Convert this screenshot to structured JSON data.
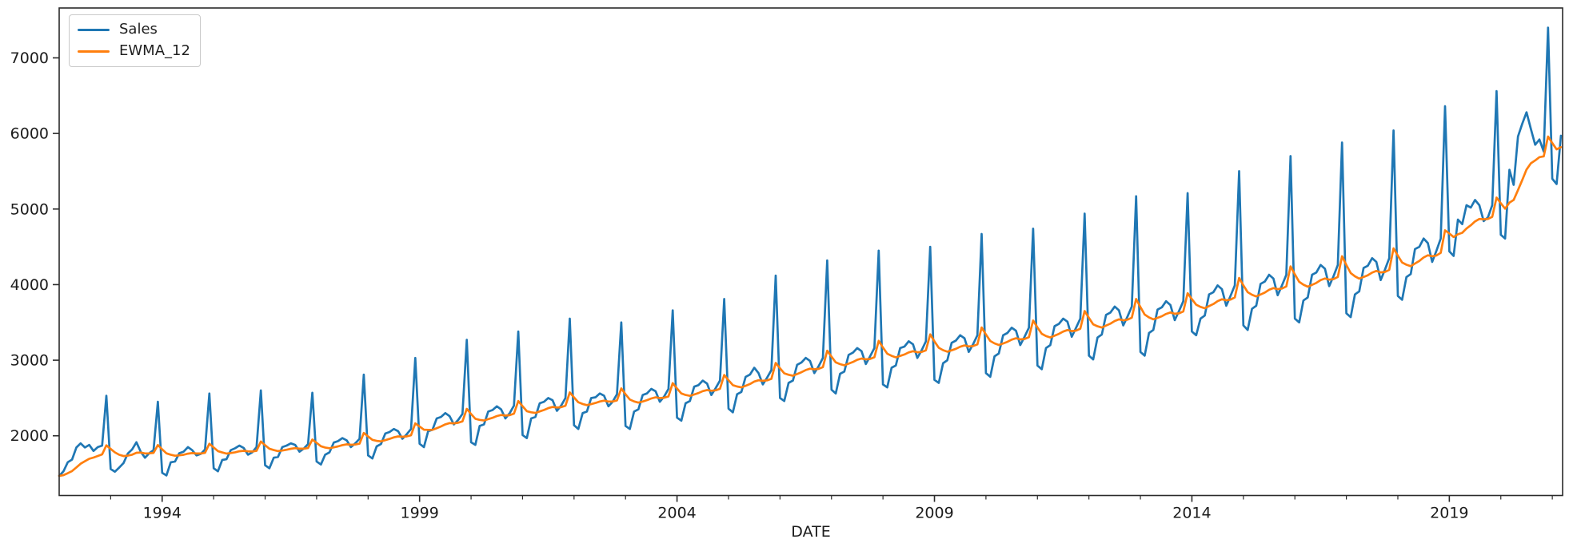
{
  "figure": {
    "background": "#ffffff",
    "spine_color": "#2a2a2a",
    "tick_label_color": "#1c1c1c"
  },
  "chart_data": {
    "type": "line",
    "title": "",
    "xlabel": "DATE",
    "ylabel": "",
    "x_start": "1992-01",
    "x_end": "2021-03",
    "frequency": "monthly",
    "grid": false,
    "ylim": [
      1210,
      7660
    ],
    "xlim_months": [
      0,
      350.4
    ],
    "y_ticks": [
      2000,
      3000,
      4000,
      5000,
      6000,
      7000
    ],
    "x_major_tick_years": [
      1994,
      1999,
      2004,
      2009,
      2014,
      2019
    ],
    "x_minor_tick_years": [
      1993,
      1995,
      1996,
      1997,
      1998,
      2000,
      2001,
      2002,
      2003,
      2005,
      2006,
      2007,
      2008,
      2010,
      2011,
      2012,
      2013,
      2015,
      2016,
      2017,
      2018,
      2020,
      2021
    ],
    "legend": {
      "position": "upper-left",
      "entries": [
        {
          "label": "Sales",
          "color": "#1f77b4"
        },
        {
          "label": "EWMA_12",
          "color": "#ff7f0e"
        }
      ]
    },
    "series": [
      {
        "name": "Sales",
        "color": "#1f77b4",
        "values": [
          1470,
          1530,
          1650,
          1685,
          1845,
          1900,
          1845,
          1880,
          1800,
          1850,
          1870,
          2530,
          1560,
          1525,
          1580,
          1640,
          1765,
          1820,
          1915,
          1790,
          1710,
          1770,
          1810,
          2450,
          1510,
          1475,
          1650,
          1660,
          1770,
          1790,
          1850,
          1810,
          1740,
          1760,
          1820,
          2560,
          1570,
          1530,
          1680,
          1690,
          1810,
          1835,
          1870,
          1840,
          1750,
          1780,
          1850,
          2600,
          1610,
          1570,
          1710,
          1720,
          1850,
          1870,
          1900,
          1880,
          1790,
          1830,
          1890,
          2570,
          1660,
          1620,
          1750,
          1780,
          1910,
          1930,
          1970,
          1940,
          1850,
          1900,
          1960,
          2810,
          1740,
          1700,
          1860,
          1890,
          2030,
          2050,
          2090,
          2060,
          1960,
          2020,
          2090,
          3030,
          1895,
          1850,
          2060,
          2080,
          2230,
          2250,
          2300,
          2260,
          2150,
          2210,
          2290,
          3270,
          1915,
          1880,
          2130,
          2150,
          2320,
          2340,
          2390,
          2350,
          2230,
          2300,
          2400,
          3380,
          2010,
          1970,
          2230,
          2250,
          2430,
          2450,
          2500,
          2470,
          2330,
          2400,
          2500,
          3550,
          2140,
          2090,
          2300,
          2320,
          2500,
          2510,
          2560,
          2530,
          2390,
          2450,
          2550,
          3500,
          2130,
          2090,
          2320,
          2350,
          2540,
          2560,
          2620,
          2590,
          2450,
          2520,
          2620,
          3660,
          2240,
          2200,
          2430,
          2460,
          2650,
          2670,
          2730,
          2690,
          2540,
          2630,
          2730,
          3810,
          2360,
          2310,
          2550,
          2580,
          2780,
          2810,
          2900,
          2830,
          2680,
          2770,
          2870,
          4120,
          2500,
          2460,
          2700,
          2730,
          2940,
          2970,
          3030,
          2990,
          2830,
          2920,
          3030,
          4320,
          2610,
          2560,
          2820,
          2850,
          3070,
          3100,
          3160,
          3120,
          2950,
          3050,
          3160,
          4450,
          2680,
          2640,
          2900,
          2930,
          3160,
          3180,
          3250,
          3210,
          3030,
          3130,
          3250,
          4500,
          2740,
          2700,
          2960,
          3000,
          3230,
          3260,
          3330,
          3290,
          3110,
          3210,
          3330,
          4670,
          2830,
          2780,
          3050,
          3090,
          3330,
          3360,
          3430,
          3390,
          3200,
          3310,
          3430,
          4740,
          2930,
          2880,
          3160,
          3200,
          3450,
          3480,
          3550,
          3510,
          3310,
          3430,
          3550,
          4940,
          3060,
          3010,
          3300,
          3340,
          3600,
          3630,
          3710,
          3660,
          3460,
          3580,
          3710,
          5170,
          3110,
          3060,
          3360,
          3400,
          3670,
          3700,
          3780,
          3730,
          3530,
          3650,
          3780,
          5210,
          3380,
          3330,
          3550,
          3590,
          3870,
          3900,
          3990,
          3940,
          3720,
          3850,
          3990,
          5500,
          3460,
          3400,
          3680,
          3720,
          4010,
          4040,
          4130,
          4080,
          3860,
          3990,
          4130,
          5700,
          3550,
          3500,
          3790,
          3830,
          4130,
          4160,
          4260,
          4210,
          3980,
          4110,
          4260,
          5880,
          3620,
          3570,
          3870,
          3910,
          4220,
          4250,
          4350,
          4300,
          4060,
          4200,
          4350,
          6040,
          3850,
          3800,
          4100,
          4140,
          4470,
          4500,
          4610,
          4550,
          4300,
          4450,
          4610,
          6360,
          4440,
          4380,
          4860,
          4800,
          5050,
          5020,
          5120,
          5050,
          4840,
          4890,
          5050,
          6560,
          4660,
          4610,
          5520,
          5320,
          5960,
          6130,
          6280,
          6060,
          5850,
          5920,
          5760,
          7400,
          5400,
          5330,
          5970
        ]
      },
      {
        "name": "EWMA_12",
        "color": "#ff7f0e",
        "values": [
          1470,
          1479,
          1505,
          1533,
          1581,
          1630,
          1663,
          1696,
          1712,
          1733,
          1754,
          1874,
          1826,
          1780,
          1749,
          1732,
          1737,
          1750,
          1775,
          1778,
          1767,
          1768,
          1774,
          1878,
          1821,
          1768,
          1750,
          1736,
          1741,
          1749,
          1764,
          1771,
          1766,
          1766,
          1774,
          1895,
          1845,
          1797,
          1779,
          1765,
          1772,
          1782,
          1795,
          1802,
          1794,
          1792,
          1801,
          1924,
          1876,
          1829,
          1811,
          1797,
          1805,
          1815,
          1828,
          1836,
          1829,
          1829,
          1838,
          1951,
          1906,
          1862,
          1845,
          1835,
          1847,
          1860,
          1877,
          1887,
          1881,
          1884,
          1896,
          2037,
          1991,
          1946,
          1933,
          1926,
          1942,
          1959,
          1979,
          1992,
          1987,
          1992,
          2007,
          2164,
          2123,
          2081,
          2078,
          2078,
          2101,
          2124,
          2151,
          2168,
          2165,
          2172,
          2190,
          2356,
          2288,
          2225,
          2211,
          2202,
          2220,
          2238,
          2261,
          2275,
          2268,
          2273,
          2293,
          2460,
          2391,
          2326,
          2311,
          2302,
          2322,
          2341,
          2366,
          2382,
          2374,
          2378,
          2397,
          2574,
          2507,
          2443,
          2421,
          2406,
          2420,
          2434,
          2453,
          2465,
          2454,
          2453,
          2468,
          2627,
          2550,
          2480,
          2455,
          2439,
          2454,
          2471,
          2494,
          2508,
          2499,
          2503,
          2521,
          2696,
          2626,
          2560,
          2540,
          2528,
          2547,
          2566,
          2591,
          2606,
          2596,
          2601,
          2621,
          2804,
          2736,
          2670,
          2652,
          2641,
          2662,
          2685,
          2718,
          2735,
          2727,
          2733,
          2754,
          2964,
          2893,
          2826,
          2807,
          2795,
          2817,
          2841,
          2870,
          2888,
          2879,
          2886,
          2908,
          3125,
          3046,
          2971,
          2948,
          2933,
          2954,
          2976,
          3005,
          3022,
          3011,
          3017,
          3039,
          3256,
          3168,
          3086,
          3058,
          3038,
          3057,
          3076,
          3103,
          3119,
          3105,
          3109,
          3131,
          3342,
          3249,
          3165,
          3133,
          3113,
          3131,
          3151,
          3178,
          3195,
          3182,
          3187,
          3209,
          3433,
          3340,
          3254,
          3223,
          3202,
          3222,
          3243,
          3272,
          3290,
          3276,
          3281,
          3304,
          3525,
          3434,
          3349,
          3320,
          3301,
          3324,
          3348,
          3379,
          3399,
          3385,
          3392,
          3417,
          3651,
          3560,
          3475,
          3449,
          3432,
          3458,
          3484,
          3519,
          3541,
          3528,
          3536,
          3563,
          3810,
          3702,
          3604,
          3566,
          3541,
          3561,
          3582,
          3612,
          3631,
          3615,
          3620,
          3645,
          3886,
          3808,
          3734,
          3706,
          3688,
          3716,
          3744,
          3782,
          3806,
          3793,
          3802,
          3831,
          4088,
          3991,
          3900,
          3866,
          3844,
          3869,
          3895,
          3932,
          3954,
          3940,
          3948,
          3976,
          4241,
          4135,
          4037,
          3999,
          3973,
          3997,
          4022,
          4059,
          4082,
          4066,
          4073,
          4102,
          4375,
          4259,
          4153,
          4110,
          4079,
          4101,
          4124,
          4159,
          4181,
          4162,
          4168,
          4196,
          4480,
          4383,
          4293,
          4263,
          4244,
          4279,
          4313,
          4359,
          4388,
          4375,
          4386,
          4421,
          4719,
          4676,
          4630,
          4666,
          4686,
          4742,
          4785,
          4836,
          4869,
          4865,
          4869,
          4897,
          5152,
          5077,
          5005,
          5084,
          5120,
          5250,
          5385,
          5523,
          5605,
          5643,
          5686,
          5697,
          5959,
          5873,
          5790,
          5818
        ]
      }
    ]
  }
}
